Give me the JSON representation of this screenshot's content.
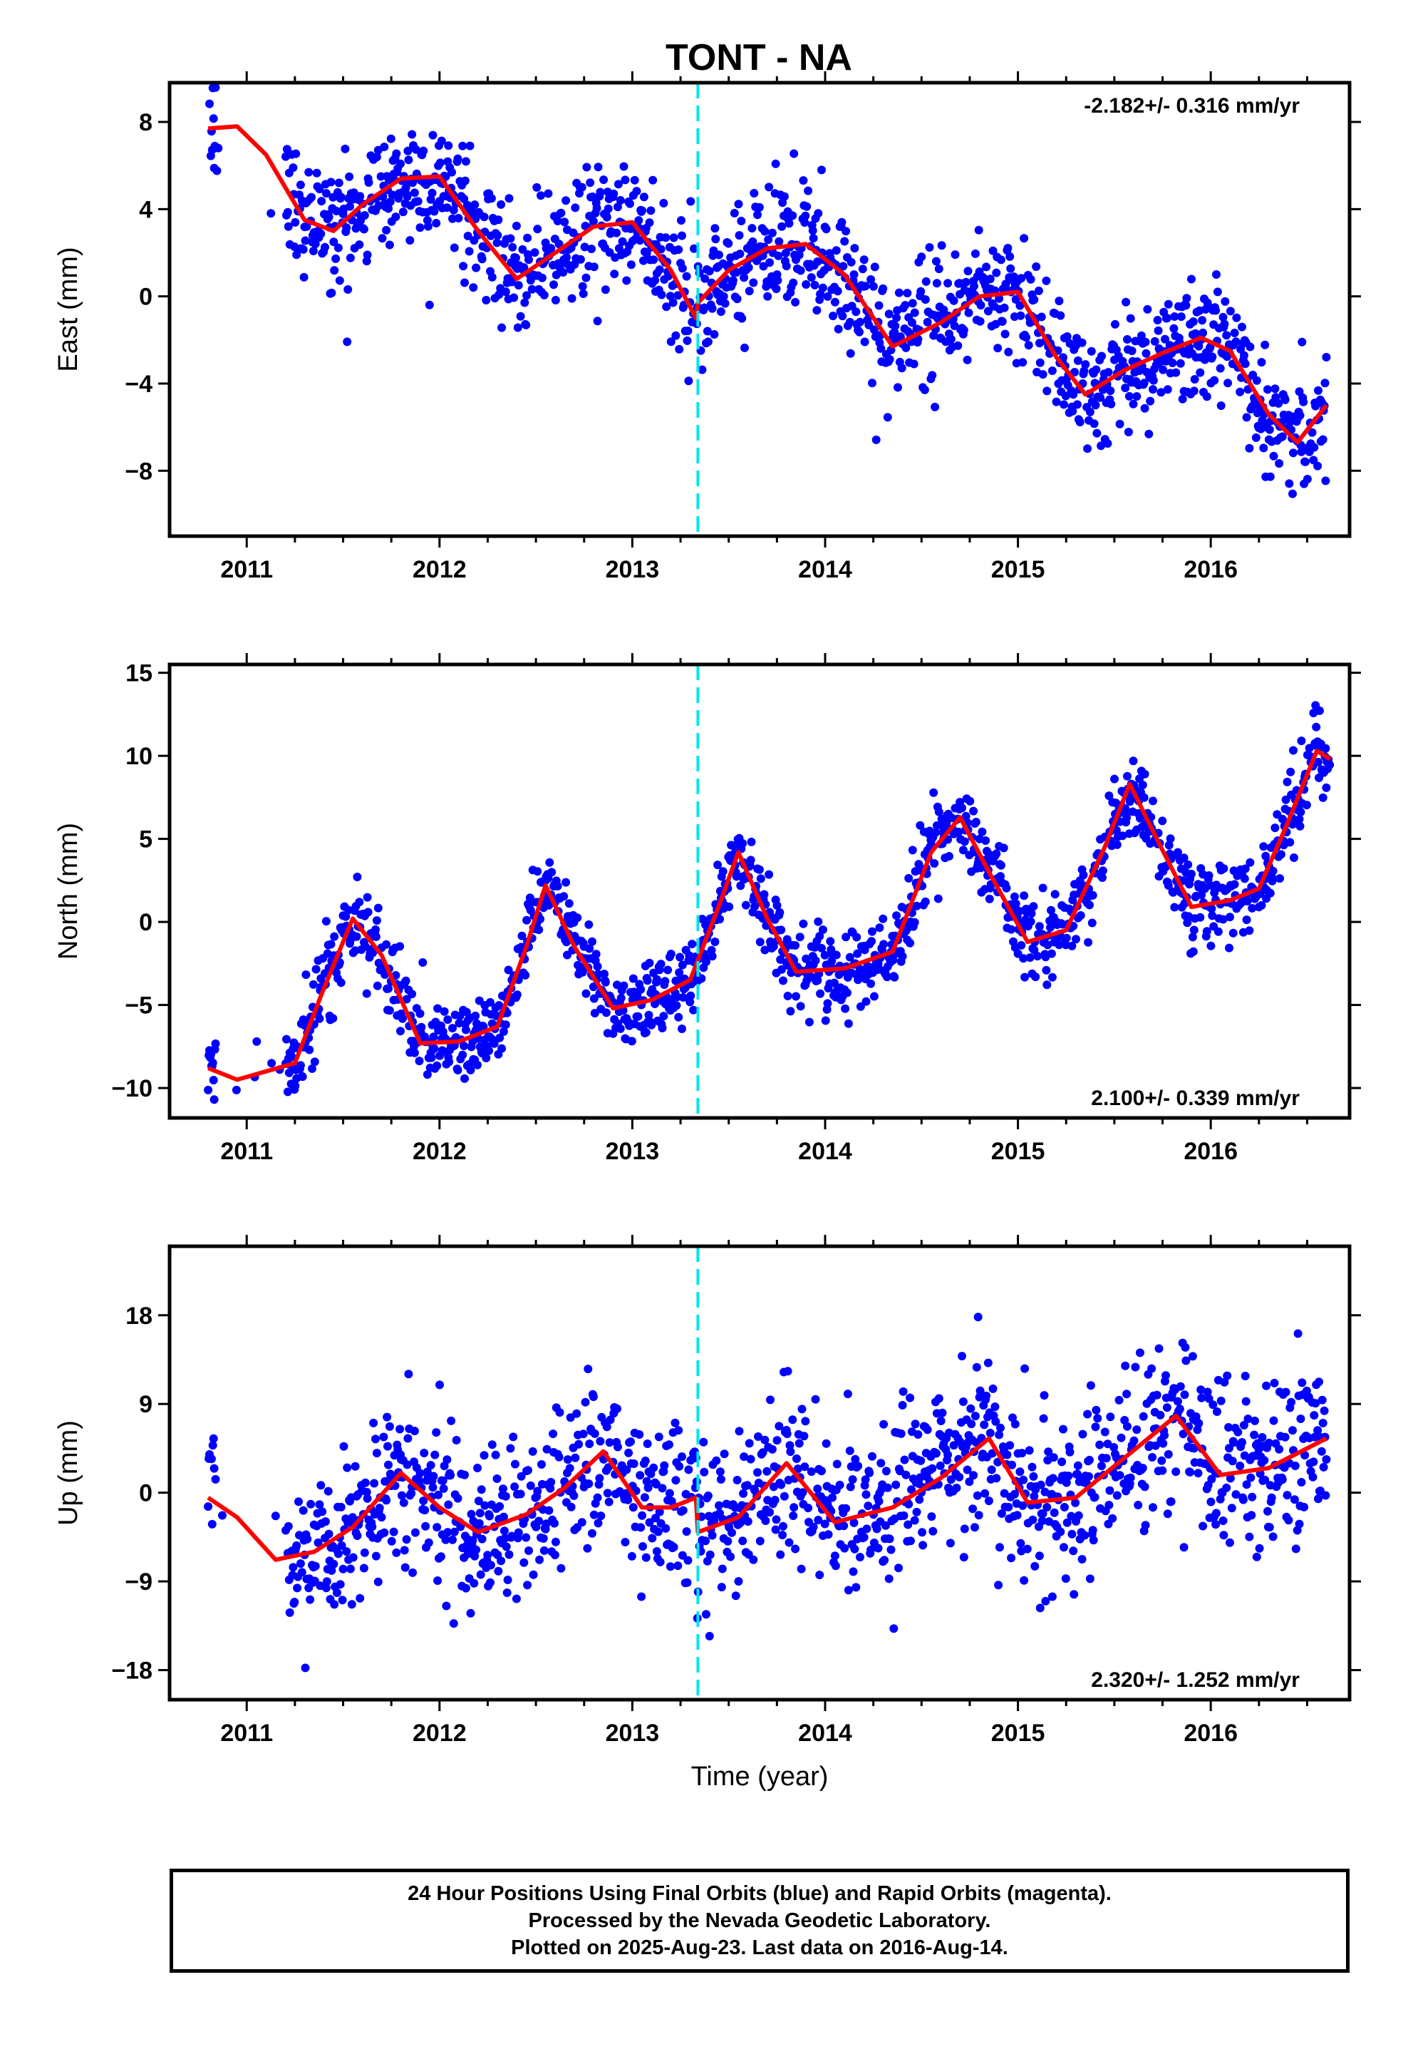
{
  "page": {
    "title": "TONT - NA"
  },
  "footer": {
    "line1": "24 Hour Positions Using Final Orbits (blue) and Rapid Orbits (magenta).",
    "line2": "Processed by the Nevada Geodetic Laboratory.",
    "line3": "Plotted on 2025-Aug-23. Last data on 2016-Aug-14."
  },
  "colors": {
    "points": "#0000ff",
    "model": "#ff0000",
    "offset_line": "#00e5ee",
    "frame": "#000000"
  },
  "chart_data": [
    {
      "type": "scatter",
      "component": "East",
      "ylabel": "East (mm)",
      "xlabel": "",
      "rate_label": "-2.182+/- 0.316 mm/yr",
      "rate_position": "top-right",
      "xlim": [
        2010.6,
        2016.72
      ],
      "ylim": [
        -11,
        9.8
      ],
      "x_ticks": [
        2011,
        2012,
        2013,
        2014,
        2015,
        2016
      ],
      "y_ticks": [
        8,
        4,
        0,
        -4,
        -8
      ],
      "y_tick_labels": [
        "8",
        "4",
        "0",
        "−4",
        "−8"
      ],
      "offset_epoch": 2013.34,
      "trend_rate": -2.182,
      "scatter_sd": 1.4,
      "model_curve": {
        "x": [
          2010.8,
          2010.95,
          2011.1,
          2011.3,
          2011.45,
          2011.6,
          2011.8,
          2012.0,
          2012.2,
          2012.4,
          2012.6,
          2012.8,
          2013.0,
          2013.2,
          2013.33,
          2013.34,
          2013.5,
          2013.7,
          2013.9,
          2014.1,
          2014.35,
          2014.6,
          2014.8,
          2015.0,
          2015.2,
          2015.35,
          2015.55,
          2015.75,
          2015.95,
          2016.1,
          2016.3,
          2016.45,
          2016.6
        ],
        "y": [
          7.7,
          7.8,
          6.5,
          3.5,
          3.0,
          4.2,
          5.4,
          5.5,
          3.0,
          0.8,
          2.0,
          3.2,
          3.4,
          1.2,
          -1.0,
          -0.3,
          1.2,
          2.2,
          2.4,
          1.0,
          -2.3,
          -1.2,
          0.0,
          0.2,
          -2.8,
          -4.5,
          -3.4,
          -2.6,
          -1.9,
          -2.5,
          -5.4,
          -6.7,
          -5.0
        ]
      }
    },
    {
      "type": "scatter",
      "component": "North",
      "ylabel": "North (mm)",
      "xlabel": "",
      "rate_label": "2.100+/- 0.339 mm/yr",
      "rate_position": "bottom-right",
      "xlim": [
        2010.6,
        2016.72
      ],
      "ylim": [
        -11.8,
        15.5
      ],
      "x_ticks": [
        2011,
        2012,
        2013,
        2014,
        2015,
        2016
      ],
      "y_ticks": [
        15,
        10,
        5,
        0,
        -5,
        -10
      ],
      "y_tick_labels": [
        "15",
        "10",
        "5",
        "0",
        "−5",
        "−10"
      ],
      "offset_epoch": 2013.34,
      "trend_rate": 2.1,
      "scatter_sd": 1.2,
      "model_curve": {
        "x": [
          2010.8,
          2010.95,
          2011.1,
          2011.25,
          2011.4,
          2011.55,
          2011.7,
          2011.9,
          2012.1,
          2012.3,
          2012.45,
          2012.55,
          2012.7,
          2012.9,
          2013.1,
          2013.3,
          2013.45,
          2013.55,
          2013.7,
          2013.85,
          2014.1,
          2014.35,
          2014.55,
          2014.7,
          2014.85,
          2015.05,
          2015.25,
          2015.45,
          2015.58,
          2015.72,
          2015.9,
          2016.1,
          2016.25,
          2016.4,
          2016.55,
          2016.62
        ],
        "y": [
          -8.8,
          -9.5,
          -9.0,
          -8.5,
          -4.0,
          0.2,
          -2.0,
          -7.3,
          -7.2,
          -6.3,
          -1.5,
          2.2,
          -1.5,
          -5.2,
          -4.7,
          -3.5,
          1.0,
          4.2,
          0.2,
          -3.0,
          -2.8,
          -1.8,
          4.2,
          6.3,
          3.0,
          -1.2,
          -0.5,
          4.5,
          8.3,
          5.0,
          0.9,
          1.3,
          2.0,
          6.0,
          10.3,
          9.8
        ]
      }
    },
    {
      "type": "scatter",
      "component": "Up",
      "ylabel": "Up (mm)",
      "xlabel": "Time (year)",
      "rate_label": "2.320+/- 1.252 mm/yr",
      "rate_position": "bottom-right",
      "xlim": [
        2010.6,
        2016.72
      ],
      "ylim": [
        -21,
        25
      ],
      "x_ticks": [
        2011,
        2012,
        2013,
        2014,
        2015,
        2016
      ],
      "y_ticks": [
        18,
        9,
        0,
        -9,
        -18
      ],
      "y_tick_labels": [
        "18",
        "9",
        "0",
        "−9",
        "−18"
      ],
      "offset_epoch": 2013.34,
      "trend_rate": 2.32,
      "scatter_sd": 4.2,
      "model_curve": {
        "x": [
          2010.8,
          2010.95,
          2011.15,
          2011.35,
          2011.55,
          2011.8,
          2012.0,
          2012.2,
          2012.45,
          2012.65,
          2012.85,
          2013.05,
          2013.2,
          2013.33,
          2013.34,
          2013.55,
          2013.8,
          2014.05,
          2014.35,
          2014.6,
          2014.85,
          2015.05,
          2015.3,
          2015.55,
          2015.82,
          2016.05,
          2016.3,
          2016.6
        ],
        "y": [
          -0.5,
          -2.5,
          -6.8,
          -6.0,
          -3.5,
          2.0,
          -1.5,
          -4.0,
          -2.2,
          0.5,
          4.2,
          -1.5,
          -1.5,
          -0.5,
          -4.0,
          -2.5,
          3.0,
          -3.0,
          -1.5,
          1.5,
          5.5,
          -1.0,
          -0.5,
          3.5,
          7.8,
          1.8,
          2.5,
          5.5
        ]
      }
    }
  ]
}
